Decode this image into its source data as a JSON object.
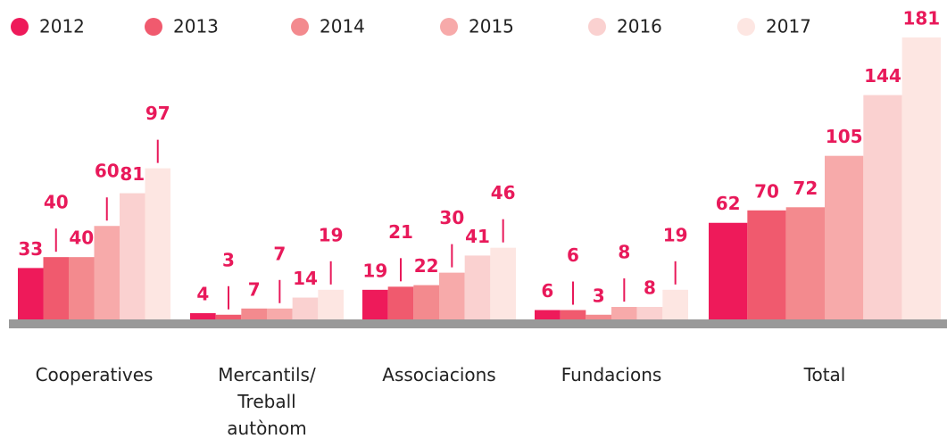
{
  "chart_data": {
    "type": "bar",
    "categories": [
      "Cooperatives",
      "Mercantils/\nTreball\nautònom",
      "Associacions",
      "Fundacions",
      "Total"
    ],
    "series": [
      {
        "name": "2012",
        "color": "#ee1a5a",
        "values": [
          33,
          4,
          19,
          6,
          62
        ]
      },
      {
        "name": "2013",
        "color": "#f05a6e",
        "values": [
          40,
          3,
          21,
          6,
          70
        ]
      },
      {
        "name": "2014",
        "color": "#f38a8e",
        "values": [
          40,
          7,
          22,
          3,
          72
        ]
      },
      {
        "name": "2015",
        "color": "#f7aaaa",
        "values": [
          60,
          7,
          30,
          8,
          105
        ]
      },
      {
        "name": "2016",
        "color": "#fad1d0",
        "values": [
          81,
          14,
          41,
          8,
          144
        ]
      },
      {
        "name": "2017",
        "color": "#fde6e2",
        "values": [
          97,
          19,
          46,
          19,
          181
        ]
      }
    ],
    "label_color": "#e8195a",
    "legend": "top"
  }
}
